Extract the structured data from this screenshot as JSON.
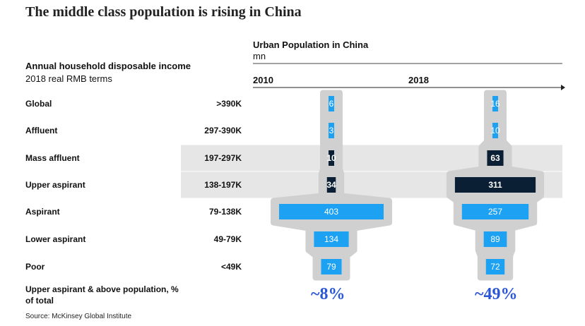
{
  "title": "The middle class population is rising in China",
  "header": {
    "urban_title": "Urban Population in China",
    "urban_unit": "mn",
    "income_title": "Annual household disposable income",
    "income_sub": "2018 real RMB terms"
  },
  "colors": {
    "bright_blue": "#1da1f2",
    "dark_navy": "#0a1f33",
    "shadow_gray": "#d0d0d0",
    "highlight_band": "#e6e6e6",
    "share_blue": "#2b57d6"
  },
  "chart_data": {
    "type": "bar",
    "title": "Urban Population in China",
    "ylabel": "mn",
    "years": [
      "2010",
      "2018"
    ],
    "categories": [
      "Global",
      "Affluent",
      "Mass affluent",
      "Upper aspirant",
      "Aspirant",
      "Lower aspirant",
      "Poor"
    ],
    "ranges": [
      ">390K",
      "297-390K",
      "197-297K",
      "138-197K",
      "79-138K",
      "49-79K",
      "<49K"
    ],
    "highlighted_categories": [
      "Mass affluent",
      "Upper aspirant"
    ],
    "series": [
      {
        "name": "2010",
        "values": [
          6,
          3,
          10,
          34,
          403,
          134,
          79
        ],
        "colors": [
          "#1da1f2",
          "#1da1f2",
          "#0a1f33",
          "#0a1f33",
          "#1da1f2",
          "#1da1f2",
          "#1da1f2"
        ]
      },
      {
        "name": "2018",
        "values": [
          16,
          10,
          63,
          311,
          257,
          89,
          72
        ],
        "colors": [
          "#1da1f2",
          "#1da1f2",
          "#0a1f33",
          "#0a1f33",
          "#1da1f2",
          "#1da1f2",
          "#1da1f2"
        ]
      }
    ],
    "share_label": "Upper aspirant & above population, % of total",
    "shares": [
      "~8%",
      "~49%"
    ]
  },
  "source": "Source: McKinsey Global Institute"
}
